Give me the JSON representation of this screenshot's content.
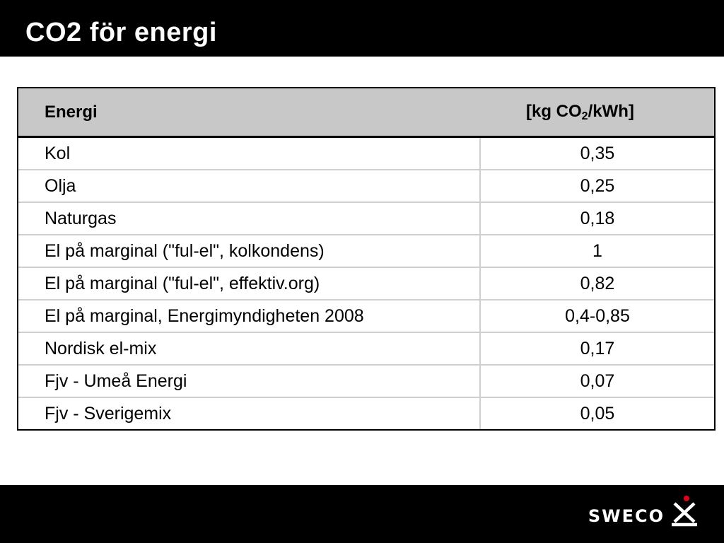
{
  "slide": {
    "title": "CO2 för energi"
  },
  "table": {
    "header": {
      "energy": "Energi",
      "unit_prefix": "[kg CO",
      "unit_sub": "2",
      "unit_suffix": "/kWh]"
    },
    "rows": [
      {
        "name": "Kol",
        "value": "0,35"
      },
      {
        "name": "Olja",
        "value": "0,25"
      },
      {
        "name": "Naturgas",
        "value": "0,18"
      },
      {
        "name": "El på marginal (\"ful-el\", kolkondens)",
        "value": "1"
      },
      {
        "name": "El på marginal (\"ful-el\", effektiv.org)",
        "value": "0,82"
      },
      {
        "name": "El på marginal, Energimyndigheten 2008",
        "value": "0,4-0,85"
      },
      {
        "name": "Nordisk el-mix",
        "value": "0,17"
      },
      {
        "name": "Fjv - Umeå Energi",
        "value": "0,07"
      },
      {
        "name": "Fjv - Sverigemix",
        "value": "0,05"
      }
    ]
  },
  "footer": {
    "logo_text": "SWECO",
    "logo_icon": "sweco-symbol-icon",
    "accent_color": "#e2001a"
  }
}
